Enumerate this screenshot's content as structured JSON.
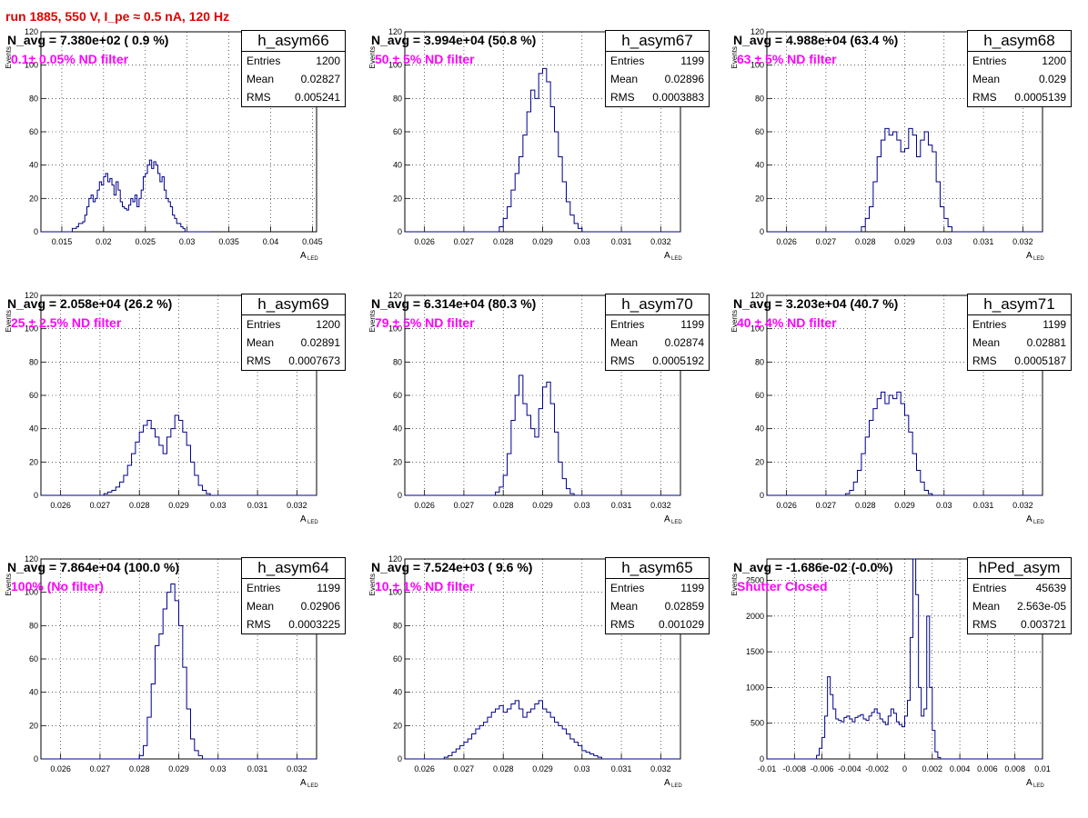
{
  "run_title": "run 1885,   550 V, I_pe ≈ 0.5 nA, 120 Hz",
  "y_axis_label": "Events",
  "x_axis_label": "A",
  "x_axis_sub": "LED",
  "colors": {
    "histogram": "#00008b",
    "title": "#e00000",
    "annotation": "#ff00ff",
    "grid": "#000000"
  },
  "stat_labels": {
    "entries": "Entries",
    "mean": "Mean",
    "rms": "RMS"
  },
  "panels": [
    {
      "hist_name": "h_asym66",
      "n_avg": "N_avg = 7.380e+02 ( 0.9 %)",
      "note": "0.1± 0.05% ND filter",
      "stats": {
        "entries": "1200",
        "mean": "0.02827",
        "rms": "0.005241"
      }
    },
    {
      "hist_name": "h_asym67",
      "n_avg": "N_avg = 3.994e+04 (50.8 %)",
      "note": "50 ± 5% ND filter",
      "stats": {
        "entries": "1199",
        "mean": "0.02896",
        "rms": "0.0003883"
      }
    },
    {
      "hist_name": "h_asym68",
      "n_avg": "N_avg = 4.988e+04 (63.4 %)",
      "note": "63 ± 5% ND filter",
      "stats": {
        "entries": "1200",
        "mean": "0.029",
        "rms": "0.0005139"
      }
    },
    {
      "hist_name": "h_asym69",
      "n_avg": "N_avg = 2.058e+04 (26.2 %)",
      "note": "25 ± 2.5% ND filter",
      "stats": {
        "entries": "1200",
        "mean": "0.02891",
        "rms": "0.0007673"
      }
    },
    {
      "hist_name": "h_asym70",
      "n_avg": "N_avg = 6.314e+04 (80.3 %)",
      "note": "79 ± 5% ND filter",
      "stats": {
        "entries": "1199",
        "mean": "0.02874",
        "rms": "0.0005192"
      }
    },
    {
      "hist_name": "h_asym71",
      "n_avg": "N_avg = 3.203e+04 (40.7 %)",
      "note": "40 ± 4% ND filter",
      "stats": {
        "entries": "1199",
        "mean": "0.02881",
        "rms": "0.0005187"
      }
    },
    {
      "hist_name": "h_asym64",
      "n_avg": "N_avg = 7.864e+04 (100.0 %)",
      "note": "100% (No filter)",
      "stats": {
        "entries": "1199",
        "mean": "0.02906",
        "rms": "0.0003225"
      }
    },
    {
      "hist_name": "h_asym65",
      "n_avg": "N_avg = 7.524e+03 ( 9.6 %)",
      "note": "10 ± 1% ND filter",
      "stats": {
        "entries": "1199",
        "mean": "0.02859",
        "rms": "0.001029"
      }
    },
    {
      "hist_name": "hPed_asym",
      "n_avg": "N_avg = -1.686e-02 (-0.0%)",
      "note": "Shutter Closed",
      "stats": {
        "entries": "45639",
        "mean": "2.563e-05",
        "rms": "0.003721"
      }
    }
  ],
  "chart_data": [
    {
      "type": "bar",
      "series": [
        {
          "name": "h_asym66",
          "x_start": 0.0125,
          "bin_width": 0.00025,
          "values": [
            0,
            0,
            0,
            0,
            0,
            0,
            0,
            0,
            0,
            0,
            0,
            0,
            0,
            0,
            0,
            2,
            2,
            3,
            5,
            5,
            6,
            10,
            15,
            20,
            22,
            18,
            20,
            25,
            30,
            28,
            33,
            35,
            30,
            32,
            28,
            22,
            30,
            25,
            18,
            15,
            14,
            13,
            16,
            20,
            18,
            22,
            15,
            20,
            25,
            33,
            35,
            40,
            43,
            38,
            42,
            40,
            35,
            30,
            33,
            25,
            20,
            18,
            15,
            10,
            8,
            5,
            5,
            3,
            2,
            0,
            0,
            0,
            0,
            0,
            0,
            0,
            0,
            0,
            0,
            0,
            0
          ]
        }
      ],
      "xlim": [
        0.0125,
        0.0455
      ],
      "ylim": [
        0,
        120
      ],
      "xticks": [
        0.015,
        0.02,
        0.025,
        0.03,
        0.035,
        0.04,
        0.045
      ],
      "xtick_labels": [
        "0.015",
        "0.02",
        "0.025",
        "0.03",
        "0.035",
        "0.04",
        "0.045"
      ],
      "yticks": [
        0,
        20,
        40,
        60,
        80,
        100,
        120
      ],
      "grid": true
    },
    {
      "type": "bar",
      "series": [
        {
          "name": "h_asym67",
          "x_start": 0.0255,
          "bin_width": 0.0001,
          "values": [
            0,
            0,
            0,
            0,
            0,
            0,
            0,
            0,
            0,
            0,
            0,
            0,
            0,
            0,
            0,
            0,
            0,
            0,
            0,
            0,
            0,
            0,
            0,
            0,
            3,
            8,
            15,
            25,
            35,
            45,
            58,
            72,
            85,
            80,
            95,
            98,
            90,
            75,
            60,
            45,
            30,
            18,
            10,
            5,
            2,
            0,
            0,
            0,
            0,
            0,
            0,
            0,
            0,
            0,
            0,
            0,
            0,
            0,
            0,
            0,
            0,
            0,
            0,
            0,
            0,
            0,
            0,
            0,
            0,
            0,
            0,
            0,
            0
          ]
        }
      ],
      "xlim": [
        0.0255,
        0.0325
      ],
      "ylim": [
        0,
        120
      ],
      "xticks": [
        0.026,
        0.027,
        0.028,
        0.029,
        0.03,
        0.031,
        0.032
      ],
      "xtick_labels": [
        "0.026",
        "0.027",
        "0.028",
        "0.029",
        "0.03",
        "0.031",
        "0.032"
      ],
      "yticks": [
        0,
        20,
        40,
        60,
        80,
        100,
        120
      ],
      "grid": true
    },
    {
      "type": "bar",
      "series": [
        {
          "name": "h_asym68",
          "x_start": 0.0255,
          "bin_width": 0.0001,
          "values": [
            0,
            0,
            0,
            0,
            0,
            0,
            0,
            0,
            0,
            0,
            0,
            0,
            0,
            0,
            0,
            0,
            0,
            0,
            0,
            0,
            0,
            0,
            0,
            0,
            3,
            8,
            15,
            30,
            45,
            55,
            62,
            58,
            60,
            55,
            48,
            50,
            62,
            58,
            45,
            55,
            60,
            52,
            48,
            30,
            15,
            8,
            3,
            0,
            0,
            0,
            0,
            0,
            0,
            0,
            0,
            0,
            0,
            0,
            0,
            0,
            0,
            0,
            0,
            0,
            0,
            0,
            0,
            0,
            0,
            0
          ]
        }
      ],
      "xlim": [
        0.0255,
        0.0325
      ],
      "ylim": [
        0,
        120
      ],
      "xticks": [
        0.026,
        0.027,
        0.028,
        0.029,
        0.03,
        0.031,
        0.032
      ],
      "xtick_labels": [
        "0.026",
        "0.027",
        "0.028",
        "0.029",
        "0.03",
        "0.031",
        "0.032"
      ],
      "yticks": [
        0,
        20,
        40,
        60,
        80,
        100,
        120
      ],
      "grid": true
    },
    {
      "type": "bar",
      "series": [
        {
          "name": "h_asym69",
          "x_start": 0.0255,
          "bin_width": 0.0001,
          "values": [
            0,
            0,
            0,
            0,
            0,
            0,
            0,
            0,
            0,
            0,
            0,
            0,
            0,
            0,
            0,
            0,
            1,
            2,
            3,
            5,
            8,
            12,
            18,
            25,
            32,
            38,
            42,
            45,
            40,
            35,
            30,
            25,
            35,
            40,
            48,
            45,
            38,
            30,
            20,
            12,
            6,
            3,
            1,
            0,
            0,
            0,
            0,
            0,
            0,
            0,
            0,
            0,
            0,
            0,
            0,
            0,
            0,
            0,
            0,
            0,
            0,
            0,
            0,
            0,
            0,
            0,
            0,
            0,
            0,
            0
          ]
        }
      ],
      "xlim": [
        0.0255,
        0.0325
      ],
      "ylim": [
        0,
        120
      ],
      "xticks": [
        0.026,
        0.027,
        0.028,
        0.029,
        0.03,
        0.031,
        0.032
      ],
      "xtick_labels": [
        "0.026",
        "0.027",
        "0.028",
        "0.029",
        "0.03",
        "0.031",
        "0.032"
      ],
      "yticks": [
        0,
        20,
        40,
        60,
        80,
        100,
        120
      ],
      "grid": true
    },
    {
      "type": "bar",
      "series": [
        {
          "name": "h_asym70",
          "x_start": 0.0255,
          "bin_width": 0.0001,
          "values": [
            0,
            0,
            0,
            0,
            0,
            0,
            0,
            0,
            0,
            0,
            0,
            0,
            0,
            0,
            0,
            0,
            0,
            0,
            0,
            0,
            0,
            0,
            0,
            2,
            5,
            12,
            25,
            45,
            60,
            72,
            55,
            48,
            40,
            35,
            52,
            65,
            68,
            55,
            38,
            20,
            10,
            4,
            1,
            0,
            0,
            0,
            0,
            0,
            0,
            0,
            0,
            0,
            0,
            0,
            0,
            0,
            0,
            0,
            0,
            0,
            0,
            0,
            0,
            0,
            0,
            0,
            0,
            0,
            0,
            0
          ]
        }
      ],
      "xlim": [
        0.0255,
        0.0325
      ],
      "ylim": [
        0,
        120
      ],
      "xticks": [
        0.026,
        0.027,
        0.028,
        0.029,
        0.03,
        0.031,
        0.032
      ],
      "xtick_labels": [
        "0.026",
        "0.027",
        "0.028",
        "0.029",
        "0.03",
        "0.031",
        "0.032"
      ],
      "yticks": [
        0,
        20,
        40,
        60,
        80,
        100,
        120
      ],
      "grid": true
    },
    {
      "type": "bar",
      "series": [
        {
          "name": "h_asym71",
          "x_start": 0.0255,
          "bin_width": 0.0001,
          "values": [
            0,
            0,
            0,
            0,
            0,
            0,
            0,
            0,
            0,
            0,
            0,
            0,
            0,
            0,
            0,
            0,
            0,
            0,
            0,
            0,
            1,
            3,
            8,
            15,
            25,
            35,
            45,
            52,
            58,
            62,
            55,
            60,
            58,
            62,
            55,
            48,
            38,
            25,
            15,
            8,
            3,
            1,
            0,
            0,
            0,
            0,
            0,
            0,
            0,
            0,
            0,
            0,
            0,
            0,
            0,
            0,
            0,
            0,
            0,
            0,
            0,
            0,
            0,
            0,
            0,
            0,
            0,
            0,
            0,
            0
          ]
        }
      ],
      "xlim": [
        0.0255,
        0.0325
      ],
      "ylim": [
        0,
        120
      ],
      "xticks": [
        0.026,
        0.027,
        0.028,
        0.029,
        0.03,
        0.031,
        0.032
      ],
      "xtick_labels": [
        "0.026",
        "0.027",
        "0.028",
        "0.029",
        "0.03",
        "0.031",
        "0.032"
      ],
      "yticks": [
        0,
        20,
        40,
        60,
        80,
        100,
        120
      ],
      "grid": true
    },
    {
      "type": "bar",
      "series": [
        {
          "name": "h_asym64",
          "x_start": 0.0255,
          "bin_width": 0.0001,
          "values": [
            0,
            0,
            0,
            0,
            0,
            0,
            0,
            0,
            0,
            0,
            0,
            0,
            0,
            0,
            0,
            0,
            0,
            0,
            0,
            0,
            0,
            0,
            0,
            0,
            0,
            2,
            8,
            25,
            45,
            68,
            75,
            90,
            100,
            105,
            95,
            80,
            55,
            30,
            12,
            5,
            2,
            0,
            0,
            0,
            0,
            0,
            0,
            0,
            0,
            0,
            0,
            0,
            0,
            0,
            0,
            0,
            0,
            0,
            0,
            0,
            0,
            0,
            0,
            0,
            0,
            0,
            0,
            0,
            0,
            0
          ]
        }
      ],
      "xlim": [
        0.0255,
        0.0325
      ],
      "ylim": [
        0,
        120
      ],
      "xticks": [
        0.026,
        0.027,
        0.028,
        0.029,
        0.03,
        0.031,
        0.032
      ],
      "xtick_labels": [
        "0.026",
        "0.027",
        "0.028",
        "0.029",
        "0.03",
        "0.031",
        "0.032"
      ],
      "yticks": [
        0,
        20,
        40,
        60,
        80,
        100,
        120
      ],
      "grid": true
    },
    {
      "type": "bar",
      "series": [
        {
          "name": "h_asym65",
          "x_start": 0.0255,
          "bin_width": 0.0001,
          "values": [
            0,
            0,
            0,
            0,
            0,
            0,
            0,
            0,
            0,
            0,
            1,
            2,
            4,
            6,
            8,
            10,
            12,
            15,
            18,
            20,
            22,
            25,
            28,
            30,
            32,
            28,
            30,
            33,
            35,
            30,
            25,
            28,
            30,
            33,
            35,
            30,
            28,
            25,
            22,
            20,
            18,
            15,
            12,
            10,
            8,
            5,
            4,
            3,
            2,
            1,
            0,
            0,
            0,
            0,
            0,
            0,
            0,
            0,
            0,
            0,
            0,
            0,
            0,
            0,
            0,
            0,
            0,
            0,
            0,
            0
          ]
        }
      ],
      "xlim": [
        0.0255,
        0.0325
      ],
      "ylim": [
        0,
        120
      ],
      "xticks": [
        0.026,
        0.027,
        0.028,
        0.029,
        0.03,
        0.031,
        0.032
      ],
      "xtick_labels": [
        "0.026",
        "0.027",
        "0.028",
        "0.029",
        "0.03",
        "0.031",
        "0.032"
      ],
      "yticks": [
        0,
        20,
        40,
        60,
        80,
        100,
        120
      ],
      "grid": true
    },
    {
      "type": "bar",
      "series": [
        {
          "name": "hPed_asym",
          "x_start": -0.01,
          "bin_width": 0.0002,
          "values": [
            0,
            0,
            0,
            0,
            0,
            0,
            0,
            0,
            0,
            0,
            0,
            0,
            0,
            0,
            0,
            0,
            0,
            0,
            50,
            150,
            300,
            600,
            1150,
            900,
            700,
            560,
            540,
            520,
            580,
            600,
            560,
            520,
            580,
            600,
            620,
            560,
            540,
            600,
            650,
            700,
            640,
            560,
            520,
            480,
            600,
            700,
            640,
            520,
            480,
            450,
            600,
            820,
            1700,
            2800,
            2300,
            1000,
            600,
            700,
            2000,
            1000,
            400,
            100,
            20,
            0,
            0,
            0,
            0,
            0,
            0,
            0,
            0,
            0,
            0,
            0,
            0,
            0,
            0,
            0,
            0,
            0,
            0,
            0,
            0,
            0,
            0,
            0,
            0,
            0,
            0,
            0,
            0,
            0,
            0,
            0,
            0,
            0,
            0,
            0,
            0,
            0,
            0
          ]
        }
      ],
      "xlim": [
        -0.01,
        0.01
      ],
      "ylim": [
        0,
        2800
      ],
      "xticks": [
        -0.01,
        -0.008,
        -0.006,
        -0.004,
        -0.002,
        0,
        0.002,
        0.004,
        0.006,
        0.008,
        0.01
      ],
      "xtick_labels": [
        "-0.01",
        "-0.008",
        "-0.006",
        "-0.004",
        "-0.002",
        "0",
        "0.002",
        "0.004",
        "0.006",
        "0.008",
        "0.01"
      ],
      "yticks": [
        0,
        500,
        1000,
        1500,
        2000,
        2500
      ],
      "grid": true
    }
  ]
}
